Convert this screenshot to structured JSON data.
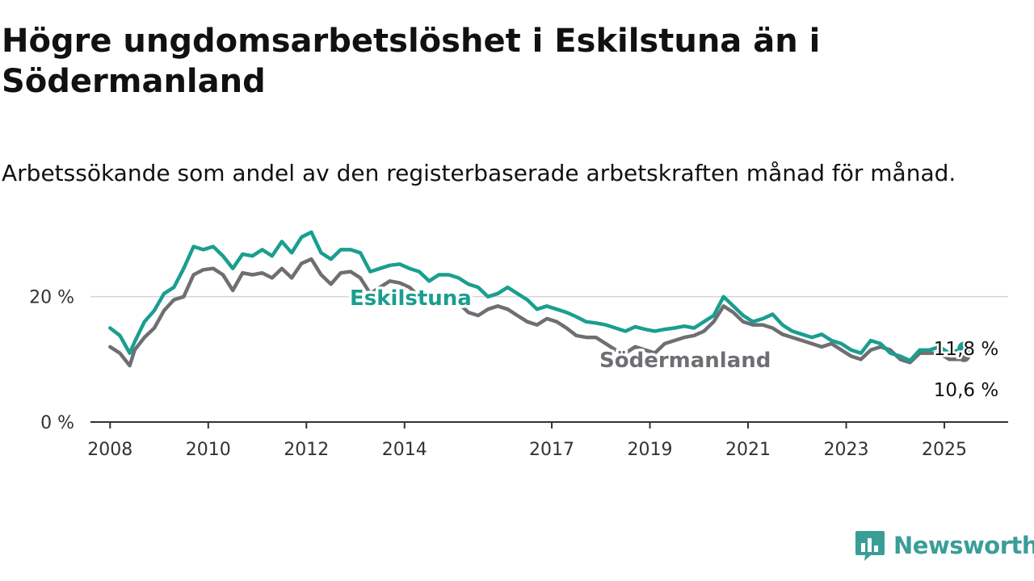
{
  "header": {
    "title": "Högre ungdomsarbetslöshet i Eskilstuna än i Södermanland",
    "subtitle": "Arbetssökande som andel av den registerbaserade arbetskraften månad för månad."
  },
  "brand": {
    "name": "Newsworthy",
    "icon": "newsworthy-logo-icon",
    "color": "#3a9e97"
  },
  "chart_data": {
    "type": "line",
    "ylim": [
      0,
      30
    ],
    "yticks": [
      0,
      20
    ],
    "ytick_labels": [
      "0 %",
      "20 %"
    ],
    "xlim": [
      2007.6,
      2026.3
    ],
    "xticks": [
      2008,
      2010,
      2012,
      2014,
      2017,
      2019,
      2021,
      2023,
      2025
    ],
    "xtick_labels": [
      "2008",
      "2010",
      "2012",
      "2014",
      "2017",
      "2019",
      "2021",
      "2023",
      "2025"
    ],
    "grid": true,
    "series": [
      {
        "name": "Eskilstuna",
        "color": "#1a9e8f",
        "end_label": "11,8 %",
        "x": [
          2008.0,
          2008.2,
          2008.4,
          2008.5,
          2008.7,
          2008.9,
          2009.1,
          2009.3,
          2009.5,
          2009.7,
          2009.9,
          2010.1,
          2010.3,
          2010.5,
          2010.7,
          2010.9,
          2011.1,
          2011.3,
          2011.5,
          2011.7,
          2011.9,
          2012.1,
          2012.3,
          2012.5,
          2012.7,
          2012.9,
          2013.1,
          2013.3,
          2013.5,
          2013.7,
          2013.9,
          2014.1,
          2014.3,
          2014.5,
          2014.7,
          2014.9,
          2015.1,
          2015.3,
          2015.5,
          2015.7,
          2015.9,
          2016.1,
          2016.3,
          2016.5,
          2016.7,
          2016.9,
          2017.1,
          2017.3,
          2017.5,
          2017.7,
          2017.9,
          2018.1,
          2018.3,
          2018.5,
          2018.7,
          2018.9,
          2019.1,
          2019.3,
          2019.5,
          2019.7,
          2019.9,
          2020.1,
          2020.3,
          2020.5,
          2020.7,
          2020.9,
          2021.1,
          2021.3,
          2021.5,
          2021.7,
          2021.9,
          2022.1,
          2022.3,
          2022.5,
          2022.7,
          2022.9,
          2023.1,
          2023.3,
          2023.5,
          2023.7,
          2023.9,
          2024.1,
          2024.3,
          2024.5,
          2024.7,
          2024.9,
          2025.1,
          2025.3,
          2025.4
        ],
        "values": [
          15.0,
          13.8,
          11.0,
          12.8,
          16.0,
          17.8,
          20.5,
          21.5,
          24.5,
          28.0,
          27.5,
          28.0,
          26.5,
          24.5,
          26.8,
          26.5,
          27.5,
          26.5,
          28.8,
          27.0,
          29.5,
          30.3,
          27.0,
          26.0,
          27.5,
          27.5,
          27.0,
          24.0,
          24.5,
          25.0,
          25.2,
          24.5,
          24.0,
          22.5,
          23.5,
          23.5,
          23.0,
          22.0,
          21.5,
          20.0,
          20.5,
          21.5,
          20.5,
          19.5,
          18.0,
          18.5,
          18.0,
          17.5,
          16.8,
          16.0,
          15.8,
          15.5,
          15.0,
          14.5,
          15.2,
          14.8,
          14.5,
          14.8,
          15.0,
          15.3,
          15.0,
          16.0,
          17.0,
          20.0,
          18.5,
          17.0,
          16.0,
          16.5,
          17.2,
          15.5,
          14.5,
          14.0,
          13.5,
          14.0,
          13.0,
          12.5,
          11.5,
          11.0,
          13.0,
          12.5,
          11.0,
          10.5,
          9.8,
          11.5,
          11.5,
          12.0,
          11.0,
          11.5,
          11.8
        ]
      },
      {
        "name": "Södermanland",
        "color": "#6e6e73",
        "end_label": "10,6 %",
        "x": [
          2008.0,
          2008.2,
          2008.4,
          2008.5,
          2008.7,
          2008.9,
          2009.1,
          2009.3,
          2009.5,
          2009.7,
          2009.9,
          2010.1,
          2010.3,
          2010.5,
          2010.7,
          2010.9,
          2011.1,
          2011.3,
          2011.5,
          2011.7,
          2011.9,
          2012.1,
          2012.3,
          2012.5,
          2012.7,
          2012.9,
          2013.1,
          2013.3,
          2013.5,
          2013.7,
          2013.9,
          2014.1,
          2014.3,
          2014.5,
          2014.7,
          2014.9,
          2015.1,
          2015.3,
          2015.5,
          2015.7,
          2015.9,
          2016.1,
          2016.3,
          2016.5,
          2016.7,
          2016.9,
          2017.1,
          2017.3,
          2017.5,
          2017.7,
          2017.9,
          2018.1,
          2018.3,
          2018.5,
          2018.7,
          2018.9,
          2019.1,
          2019.3,
          2019.5,
          2019.7,
          2019.9,
          2020.1,
          2020.3,
          2020.5,
          2020.7,
          2020.9,
          2021.1,
          2021.3,
          2021.5,
          2021.7,
          2021.9,
          2022.1,
          2022.3,
          2022.5,
          2022.7,
          2022.9,
          2023.1,
          2023.3,
          2023.5,
          2023.7,
          2023.9,
          2024.1,
          2024.3,
          2024.5,
          2024.7,
          2024.9,
          2025.1,
          2025.3,
          2025.4
        ],
        "values": [
          12.0,
          11.0,
          9.0,
          11.5,
          13.5,
          15.0,
          17.8,
          19.5,
          20.0,
          23.5,
          24.3,
          24.5,
          23.5,
          21.0,
          23.8,
          23.5,
          23.8,
          23.0,
          24.5,
          23.0,
          25.3,
          26.0,
          23.5,
          22.0,
          23.8,
          24.0,
          23.0,
          20.5,
          21.5,
          22.5,
          22.2,
          21.5,
          20.0,
          20.5,
          20.0,
          19.5,
          19.0,
          17.5,
          17.0,
          18.0,
          18.5,
          18.0,
          17.0,
          16.0,
          15.5,
          16.5,
          16.0,
          15.0,
          13.8,
          13.5,
          13.5,
          12.5,
          11.5,
          11.0,
          12.0,
          11.5,
          11.0,
          12.5,
          13.0,
          13.5,
          13.8,
          14.5,
          16.0,
          18.5,
          17.5,
          16.0,
          15.5,
          15.5,
          15.0,
          14.0,
          13.5,
          13.0,
          12.5,
          12.0,
          12.5,
          11.5,
          10.5,
          10.0,
          11.5,
          12.0,
          11.5,
          10.0,
          9.5,
          11.0,
          11.0,
          11.0,
          10.0,
          10.0,
          10.6
        ]
      }
    ]
  }
}
